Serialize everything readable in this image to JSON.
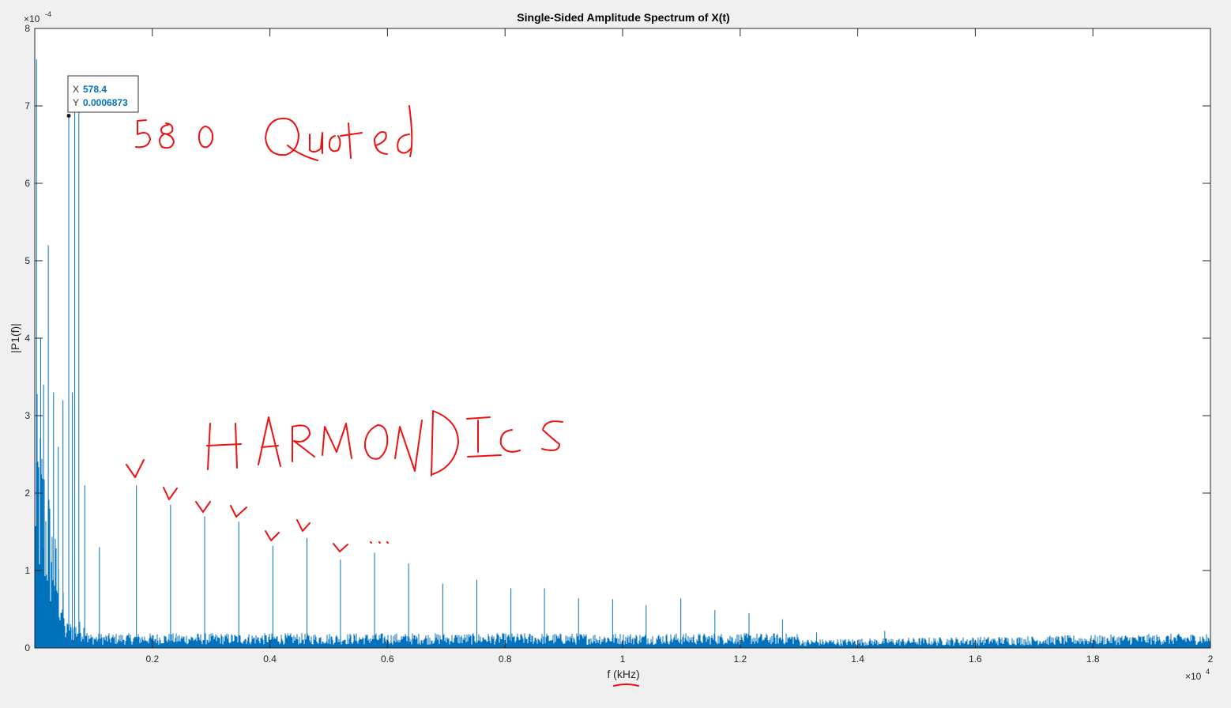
{
  "chart_data": {
    "type": "line",
    "title": "Single-Sided Amplitude Spectrum of X(t)",
    "xlabel": "f (kHz)",
    "ylabel": "|P1(f)|",
    "x_exponent_label": "×10",
    "x_exponent_power": "4",
    "y_exponent_label": "×10",
    "y_exponent_power": "-4",
    "xlim": [
      0,
      20000
    ],
    "ylim": [
      0,
      0.0008
    ],
    "grid": false,
    "series_color": "#0072BD",
    "x_ticks": [
      {
        "value": 2000,
        "label": "0.2"
      },
      {
        "value": 4000,
        "label": "0.4"
      },
      {
        "value": 6000,
        "label": "0.6"
      },
      {
        "value": 8000,
        "label": "0.8"
      },
      {
        "value": 10000,
        "label": "1"
      },
      {
        "value": 12000,
        "label": "1.2"
      },
      {
        "value": 14000,
        "label": "1.4"
      },
      {
        "value": 16000,
        "label": "1.6"
      },
      {
        "value": 18000,
        "label": "1.8"
      },
      {
        "value": 20000,
        "label": "2"
      }
    ],
    "y_ticks": [
      {
        "value": 0,
        "label": "0"
      },
      {
        "value": 0.0001,
        "label": "1"
      },
      {
        "value": 0.0002,
        "label": "2"
      },
      {
        "value": 0.0003,
        "label": "3"
      },
      {
        "value": 0.0004,
        "label": "4"
      },
      {
        "value": 0.0005,
        "label": "5"
      },
      {
        "value": 0.0006,
        "label": "6"
      },
      {
        "value": 0.0007,
        "label": "7"
      },
      {
        "value": 0.0008,
        "label": "8"
      }
    ],
    "peaks": [
      {
        "x": 30,
        "y": 0.00076
      },
      {
        "x": 100,
        "y": 0.0004
      },
      {
        "x": 150,
        "y": 0.00034
      },
      {
        "x": 230,
        "y": 0.00052
      },
      {
        "x": 320,
        "y": 0.00033
      },
      {
        "x": 400,
        "y": 0.00026
      },
      {
        "x": 480,
        "y": 0.00032
      },
      {
        "x": 578.4,
        "y": 0.0006873
      },
      {
        "x": 640,
        "y": 0.00033
      },
      {
        "x": 680,
        "y": 0.00071
      },
      {
        "x": 750,
        "y": 0.00072
      },
      {
        "x": 850,
        "y": 0.00021
      },
      {
        "x": 1100,
        "y": 0.00013
      },
      {
        "x": 1730,
        "y": 0.00021
      },
      {
        "x": 2310,
        "y": 0.000185
      },
      {
        "x": 2890,
        "y": 0.00017
      },
      {
        "x": 3470,
        "y": 0.000163
      },
      {
        "x": 4050,
        "y": 0.000132
      },
      {
        "x": 4630,
        "y": 0.000142
      },
      {
        "x": 5200,
        "y": 0.000114
      },
      {
        "x": 5780,
        "y": 0.000123
      },
      {
        "x": 6360,
        "y": 0.000109
      },
      {
        "x": 6940,
        "y": 8.3e-05
      },
      {
        "x": 7520,
        "y": 8.8e-05
      },
      {
        "x": 8100,
        "y": 7.7e-05
      },
      {
        "x": 8670,
        "y": 7.7e-05
      },
      {
        "x": 9250,
        "y": 6.4e-05
      },
      {
        "x": 9830,
        "y": 6.3e-05
      },
      {
        "x": 10400,
        "y": 5.5e-05
      },
      {
        "x": 10990,
        "y": 6.4e-05
      },
      {
        "x": 11570,
        "y": 4.9e-05
      },
      {
        "x": 12150,
        "y": 4.5e-05
      },
      {
        "x": 12720,
        "y": 3.7e-05
      },
      {
        "x": 13300,
        "y": 2e-05
      },
      {
        "x": 14460,
        "y": 2.2e-05
      }
    ],
    "datatip": {
      "x": 578.4,
      "y": 0.0006873,
      "x_label": "X",
      "y_label": "Y",
      "x_text": "578.4",
      "y_text": "0.0006873"
    }
  },
  "annotation_color": "#ee1111"
}
